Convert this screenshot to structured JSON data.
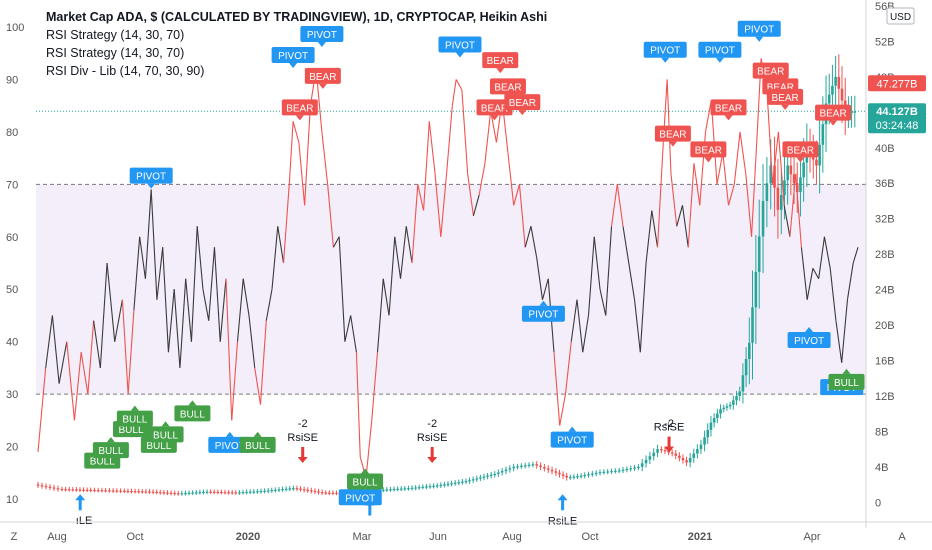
{
  "legend": [
    "Market Cap ADA, $ (CALCULATED BY TRADINGVIEW), 1D, CRYPTOCAP, Heikin Ashi",
    "RSI Strategy (14, 30, 70)",
    "RSI Strategy (14, 30, 70)",
    "RSI Div - Lib (14, 70, 30, 90)"
  ],
  "currency_badge": "USD",
  "price_badges": {
    "upper": {
      "value": "47.277B",
      "color": "#ef5350"
    },
    "lower": {
      "value": "44.127B",
      "countdown": "03:24:48",
      "color": "#26a69a"
    }
  },
  "bottom_left_button": "Z",
  "bottom_right_button": "A",
  "colors": {
    "bull": "#26a69a",
    "bear": "#ef5350",
    "rsi_line": "#3a3a3a",
    "rsi_overbought_line": "#ef5350",
    "band_fill": "#f3eefa",
    "pivot_label": "#2196f3",
    "bull_label": "#43a047",
    "bear_label": "#ef5350",
    "dotted_price_line": "#26a69a"
  },
  "chart_data": {
    "type": "line",
    "x_axis": {
      "tick_labels": [
        "Aug",
        "Oct",
        "2020",
        "Mar",
        "Jun",
        "Aug",
        "Oct",
        "2021",
        "Apr"
      ],
      "bold_ticks": [
        "2020",
        "2021"
      ]
    },
    "rsi_axis": {
      "side": "left",
      "ticks": [
        10,
        20,
        30,
        40,
        50,
        60,
        70,
        80,
        90,
        100
      ],
      "range": [
        6,
        104
      ],
      "overbought": 70,
      "oversold": 30
    },
    "price_axis": {
      "side": "right",
      "ticks": [
        "0",
        "4B",
        "8B",
        "12B",
        "16B",
        "20B",
        "24B",
        "28B",
        "32B",
        "36B",
        "40B",
        "44B",
        "48B",
        "52B",
        "56B"
      ],
      "range_billion": [
        -2,
        56
      ]
    },
    "candles_billion": [
      [
        0,
        2.0
      ],
      [
        25,
        1.5
      ],
      [
        55,
        1.4
      ],
      [
        90,
        1.3
      ],
      [
        120,
        1.2
      ],
      [
        150,
        1.0
      ],
      [
        180,
        1.2
      ],
      [
        210,
        1.1
      ],
      [
        240,
        1.3
      ],
      [
        270,
        1.6
      ],
      [
        300,
        1.1
      ],
      [
        330,
        1.0
      ],
      [
        360,
        1.4
      ],
      [
        390,
        1.6
      ],
      [
        420,
        1.9
      ],
      [
        450,
        2.4
      ],
      [
        480,
        3.2
      ],
      [
        500,
        4.0
      ],
      [
        520,
        4.3
      ],
      [
        540,
        3.5
      ],
      [
        555,
        2.8
      ],
      [
        570,
        3.0
      ],
      [
        590,
        3.4
      ],
      [
        610,
        3.6
      ],
      [
        630,
        4.0
      ],
      [
        650,
        6.0
      ],
      [
        665,
        5.5
      ],
      [
        680,
        4.5
      ],
      [
        695,
        6.5
      ],
      [
        705,
        9.0
      ],
      [
        715,
        10.5
      ],
      [
        725,
        11.0
      ],
      [
        735,
        12.5
      ],
      [
        745,
        18.0
      ],
      [
        752,
        26.0
      ],
      [
        760,
        34.0
      ],
      [
        768,
        38.0
      ],
      [
        775,
        33.0
      ],
      [
        785,
        38.0
      ],
      [
        795,
        35.0
      ],
      [
        805,
        40.0
      ],
      [
        815,
        38.0
      ],
      [
        825,
        45.0
      ],
      [
        835,
        48.0
      ],
      [
        845,
        44.0
      ],
      [
        855,
        44.1
      ]
    ],
    "rsi_series": {
      "name": "RSI",
      "points": [
        [
          0,
          19
        ],
        [
          8,
          35
        ],
        [
          15,
          45
        ],
        [
          22,
          32
        ],
        [
          30,
          40
        ],
        [
          38,
          25
        ],
        [
          45,
          38
        ],
        [
          52,
          30
        ],
        [
          58,
          44
        ],
        [
          65,
          35
        ],
        [
          72,
          55
        ],
        [
          80,
          40
        ],
        [
          88,
          48
        ],
        [
          94,
          30
        ],
        [
          100,
          46
        ],
        [
          106,
          60
        ],
        [
          112,
          52
        ],
        [
          118,
          69
        ],
        [
          124,
          48
        ],
        [
          130,
          58
        ],
        [
          136,
          38
        ],
        [
          142,
          50
        ],
        [
          148,
          35
        ],
        [
          154,
          52
        ],
        [
          160,
          40
        ],
        [
          166,
          62
        ],
        [
          172,
          50
        ],
        [
          178,
          44
        ],
        [
          184,
          58
        ],
        [
          190,
          40
        ],
        [
          196,
          52
        ],
        [
          202,
          25
        ],
        [
          208,
          40
        ],
        [
          214,
          52
        ],
        [
          220,
          45
        ],
        [
          226,
          35
        ],
        [
          232,
          28
        ],
        [
          238,
          44
        ],
        [
          244,
          50
        ],
        [
          250,
          62
        ],
        [
          256,
          55
        ],
        [
          262,
          70
        ],
        [
          266,
          82
        ],
        [
          272,
          78
        ],
        [
          278,
          66
        ],
        [
          284,
          85
        ],
        [
          290,
          92
        ],
        [
          296,
          80
        ],
        [
          302,
          70
        ],
        [
          308,
          58
        ],
        [
          314,
          60
        ],
        [
          320,
          40
        ],
        [
          326,
          45
        ],
        [
          332,
          38
        ],
        [
          336,
          18
        ],
        [
          342,
          14
        ],
        [
          348,
          25
        ],
        [
          354,
          38
        ],
        [
          360,
          52
        ],
        [
          366,
          45
        ],
        [
          372,
          60
        ],
        [
          378,
          52
        ],
        [
          384,
          62
        ],
        [
          390,
          55
        ],
        [
          396,
          70
        ],
        [
          402,
          65
        ],
        [
          408,
          82
        ],
        [
          414,
          72
        ],
        [
          420,
          60
        ],
        [
          426,
          72
        ],
        [
          432,
          85
        ],
        [
          436,
          90
        ],
        [
          442,
          88
        ],
        [
          448,
          72
        ],
        [
          454,
          64
        ],
        [
          460,
          68
        ],
        [
          466,
          74
        ],
        [
          472,
          84
        ],
        [
          478,
          78
        ],
        [
          484,
          86
        ],
        [
          490,
          76
        ],
        [
          496,
          66
        ],
        [
          502,
          70
        ],
        [
          508,
          58
        ],
        [
          514,
          62
        ],
        [
          520,
          56
        ],
        [
          526,
          48
        ],
        [
          532,
          52
        ],
        [
          538,
          38
        ],
        [
          544,
          24
        ],
        [
          550,
          30
        ],
        [
          556,
          40
        ],
        [
          562,
          48
        ],
        [
          568,
          38
        ],
        [
          574,
          45
        ],
        [
          580,
          60
        ],
        [
          586,
          50
        ],
        [
          592,
          45
        ],
        [
          598,
          62
        ],
        [
          604,
          70
        ],
        [
          610,
          62
        ],
        [
          616,
          55
        ],
        [
          622,
          48
        ],
        [
          628,
          38
        ],
        [
          634,
          55
        ],
        [
          640,
          65
        ],
        [
          646,
          58
        ],
        [
          652,
          78
        ],
        [
          656,
          90
        ],
        [
          660,
          72
        ],
        [
          666,
          62
        ],
        [
          672,
          66
        ],
        [
          678,
          58
        ],
        [
          684,
          74
        ],
        [
          690,
          66
        ],
        [
          696,
          80
        ],
        [
          702,
          86
        ],
        [
          708,
          70
        ],
        [
          714,
          76
        ],
        [
          720,
          66
        ],
        [
          726,
          70
        ],
        [
          732,
          80
        ],
        [
          738,
          72
        ],
        [
          744,
          60
        ],
        [
          750,
          80
        ],
        [
          754,
          94
        ],
        [
          760,
          88
        ],
        [
          766,
          70
        ],
        [
          772,
          80
        ],
        [
          778,
          66
        ],
        [
          784,
          60
        ],
        [
          790,
          72
        ],
        [
          796,
          58
        ],
        [
          802,
          48
        ],
        [
          808,
          54
        ],
        [
          814,
          52
        ],
        [
          820,
          60
        ],
        [
          826,
          54
        ],
        [
          832,
          44
        ],
        [
          838,
          36
        ],
        [
          844,
          48
        ],
        [
          850,
          55
        ],
        [
          855,
          58
        ]
      ]
    },
    "levels": {
      "overbought_rsi": 70,
      "oversold_rsi": 30,
      "price_line_billion": 44.127
    },
    "labels": [
      {
        "kind": "pivot",
        "text": "PIVOT",
        "x": 118,
        "rsi": 69,
        "pos": "above"
      },
      {
        "kind": "pivot",
        "text": "PIVOT",
        "x": 266,
        "rsi": 92,
        "pos": "above"
      },
      {
        "kind": "pivot",
        "text": "PIVOT",
        "x": 296,
        "rsi": 96,
        "pos": "above"
      },
      {
        "kind": "pivot",
        "text": "PIVOT",
        "x": 440,
        "rsi": 94,
        "pos": "above"
      },
      {
        "kind": "pivot",
        "text": "PIVOT",
        "x": 654,
        "rsi": 93,
        "pos": "above"
      },
      {
        "kind": "pivot",
        "text": "PIVOT",
        "x": 711,
        "rsi": 93,
        "pos": "above"
      },
      {
        "kind": "pivot",
        "text": "PIVOT",
        "x": 752,
        "rsi": 97,
        "pos": "above"
      },
      {
        "kind": "pivot",
        "text": "PIVOT",
        "x": 527,
        "rsi": 48,
        "pos": "below"
      },
      {
        "kind": "pivot",
        "text": "PIVOT",
        "x": 804,
        "rsi": 43,
        "pos": "below"
      },
      {
        "kind": "pivot",
        "text": "PIVOT",
        "x": 200,
        "rsi": 23,
        "pos": "below"
      },
      {
        "kind": "pivot",
        "text": "PIVOT",
        "x": 336,
        "rsi": 13,
        "pos": "below"
      },
      {
        "kind": "pivot",
        "text": "PIVOT",
        "x": 557,
        "rsi": 24,
        "pos": "below"
      },
      {
        "kind": "pivot",
        "text": "PIVOT",
        "x": 838,
        "rsi": 34,
        "pos": "below"
      },
      {
        "kind": "bear",
        "text": "BEAR",
        "x": 273,
        "rsi": 82,
        "pos": "above"
      },
      {
        "kind": "bear",
        "text": "BEAR",
        "x": 297,
        "rsi": 88,
        "pos": "above"
      },
      {
        "kind": "bear",
        "text": "BEAR",
        "x": 482,
        "rsi": 91,
        "pos": "above"
      },
      {
        "kind": "bear",
        "text": "BEAR",
        "x": 490,
        "rsi": 86,
        "pos": "above"
      },
      {
        "kind": "bear",
        "text": "BEAR",
        "x": 476,
        "rsi": 82,
        "pos": "above"
      },
      {
        "kind": "bear",
        "text": "BEAR",
        "x": 505,
        "rsi": 83,
        "pos": "above"
      },
      {
        "kind": "bear",
        "text": "BEAR",
        "x": 662,
        "rsi": 77,
        "pos": "above"
      },
      {
        "kind": "bear",
        "text": "BEAR",
        "x": 699,
        "rsi": 74,
        "pos": "above"
      },
      {
        "kind": "bear",
        "text": "BEAR",
        "x": 720,
        "rsi": 82,
        "pos": "above"
      },
      {
        "kind": "bear",
        "text": "BEAR",
        "x": 764,
        "rsi": 89,
        "pos": "above"
      },
      {
        "kind": "bear",
        "text": "BEAR",
        "x": 774,
        "rsi": 86,
        "pos": "above"
      },
      {
        "kind": "bear",
        "text": "BEAR",
        "x": 779,
        "rsi": 84,
        "pos": "above"
      },
      {
        "kind": "bear",
        "text": "BEAR",
        "x": 795,
        "rsi": 74,
        "pos": "above"
      },
      {
        "kind": "bear",
        "text": "BEAR",
        "x": 829,
        "rsi": 81,
        "pos": "above"
      },
      {
        "kind": "bull",
        "text": "BULL",
        "x": 67,
        "rsi": 20,
        "pos": "below"
      },
      {
        "kind": "bull",
        "text": "BULL",
        "x": 76,
        "rsi": 22,
        "pos": "below"
      },
      {
        "kind": "bull",
        "text": "BULL",
        "x": 97,
        "rsi": 26,
        "pos": "below"
      },
      {
        "kind": "bull",
        "text": "BULL",
        "x": 101,
        "rsi": 28,
        "pos": "below"
      },
      {
        "kind": "bull",
        "text": "BULL",
        "x": 126,
        "rsi": 23,
        "pos": "below"
      },
      {
        "kind": "bull",
        "text": "BULL",
        "x": 133,
        "rsi": 25,
        "pos": "below"
      },
      {
        "kind": "bull",
        "text": "BULL",
        "x": 161,
        "rsi": 29,
        "pos": "below"
      },
      {
        "kind": "bull",
        "text": "BULL",
        "x": 229,
        "rsi": 23,
        "pos": "below"
      },
      {
        "kind": "bull",
        "text": "BULL",
        "x": 341,
        "rsi": 16,
        "pos": "below"
      },
      {
        "kind": "bull",
        "text": "BULL",
        "x": 843,
        "rsi": 35,
        "pos": "below"
      }
    ],
    "signals": [
      {
        "kind": "long",
        "text": "",
        "x": 44,
        "rsi": 9
      },
      {
        "kind": "long",
        "text": "",
        "x": 346,
        "rsi": 8
      },
      {
        "kind": "long",
        "text": "RsiLE",
        "x": 547,
        "rsi": 9
      },
      {
        "kind": "short",
        "text": "RsiSE",
        "x": 276,
        "rsi": 18
      },
      {
        "kind": "short",
        "text": "RsiSE",
        "x": 411,
        "rsi": 18
      },
      {
        "kind": "short",
        "text": "RsiSE",
        "x": 658,
        "rsi": 20
      }
    ],
    "signal_qty": [
      {
        "text": "-2",
        "x": 276
      },
      {
        "text": "-2",
        "x": 411
      },
      {
        "text": "-2",
        "x": 658
      }
    ],
    "cut_label": {
      "text": "ıLE",
      "x": 48
    }
  }
}
